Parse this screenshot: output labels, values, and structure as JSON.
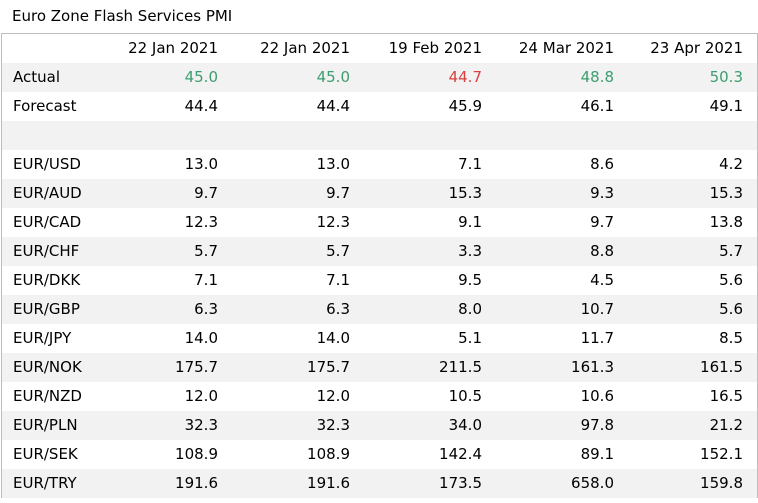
{
  "title": "Euro Zone Flash Services PMI",
  "columns": [
    "22 Jan 2021",
    "22 Jan 2021",
    "19 Feb 2021",
    "24 Mar 2021",
    "23 Apr 2021"
  ],
  "actual": {
    "label": "Actual",
    "values": [
      "45.0",
      "45.0",
      "44.7",
      "48.8",
      "50.3"
    ],
    "colors": [
      "#3c9e6e",
      "#3c9e6e",
      "#d9403f",
      "#3c9e6e",
      "#3c9e6e"
    ]
  },
  "forecast": {
    "label": "Forecast",
    "values": [
      "44.4",
      "44.4",
      "45.9",
      "46.1",
      "49.1"
    ]
  },
  "pairs": [
    {
      "label": "EUR/USD",
      "values": [
        "13.0",
        "13.0",
        "7.1",
        "8.6",
        "4.2"
      ]
    },
    {
      "label": "EUR/AUD",
      "values": [
        "9.7",
        "9.7",
        "15.3",
        "9.3",
        "15.3"
      ]
    },
    {
      "label": "EUR/CAD",
      "values": [
        "12.3",
        "12.3",
        "9.1",
        "9.7",
        "13.8"
      ]
    },
    {
      "label": "EUR/CHF",
      "values": [
        "5.7",
        "5.7",
        "3.3",
        "8.8",
        "5.7"
      ]
    },
    {
      "label": "EUR/DKK",
      "values": [
        "7.1",
        "7.1",
        "9.5",
        "4.5",
        "5.6"
      ]
    },
    {
      "label": "EUR/GBP",
      "values": [
        "6.3",
        "6.3",
        "8.0",
        "10.7",
        "5.6"
      ]
    },
    {
      "label": "EUR/JPY",
      "values": [
        "14.0",
        "14.0",
        "5.1",
        "11.7",
        "8.5"
      ]
    },
    {
      "label": "EUR/NOK",
      "values": [
        "175.7",
        "175.7",
        "211.5",
        "161.3",
        "161.5"
      ]
    },
    {
      "label": "EUR/NZD",
      "values": [
        "12.0",
        "12.0",
        "10.5",
        "10.6",
        "16.5"
      ]
    },
    {
      "label": "EUR/PLN",
      "values": [
        "32.3",
        "32.3",
        "34.0",
        "97.8",
        "21.2"
      ]
    },
    {
      "label": "EUR/SEK",
      "values": [
        "108.9",
        "108.9",
        "142.4",
        "89.1",
        "152.1"
      ]
    },
    {
      "label": "EUR/TRY",
      "values": [
        "191.6",
        "191.6",
        "173.5",
        "658.0",
        "159.8"
      ]
    }
  ]
}
